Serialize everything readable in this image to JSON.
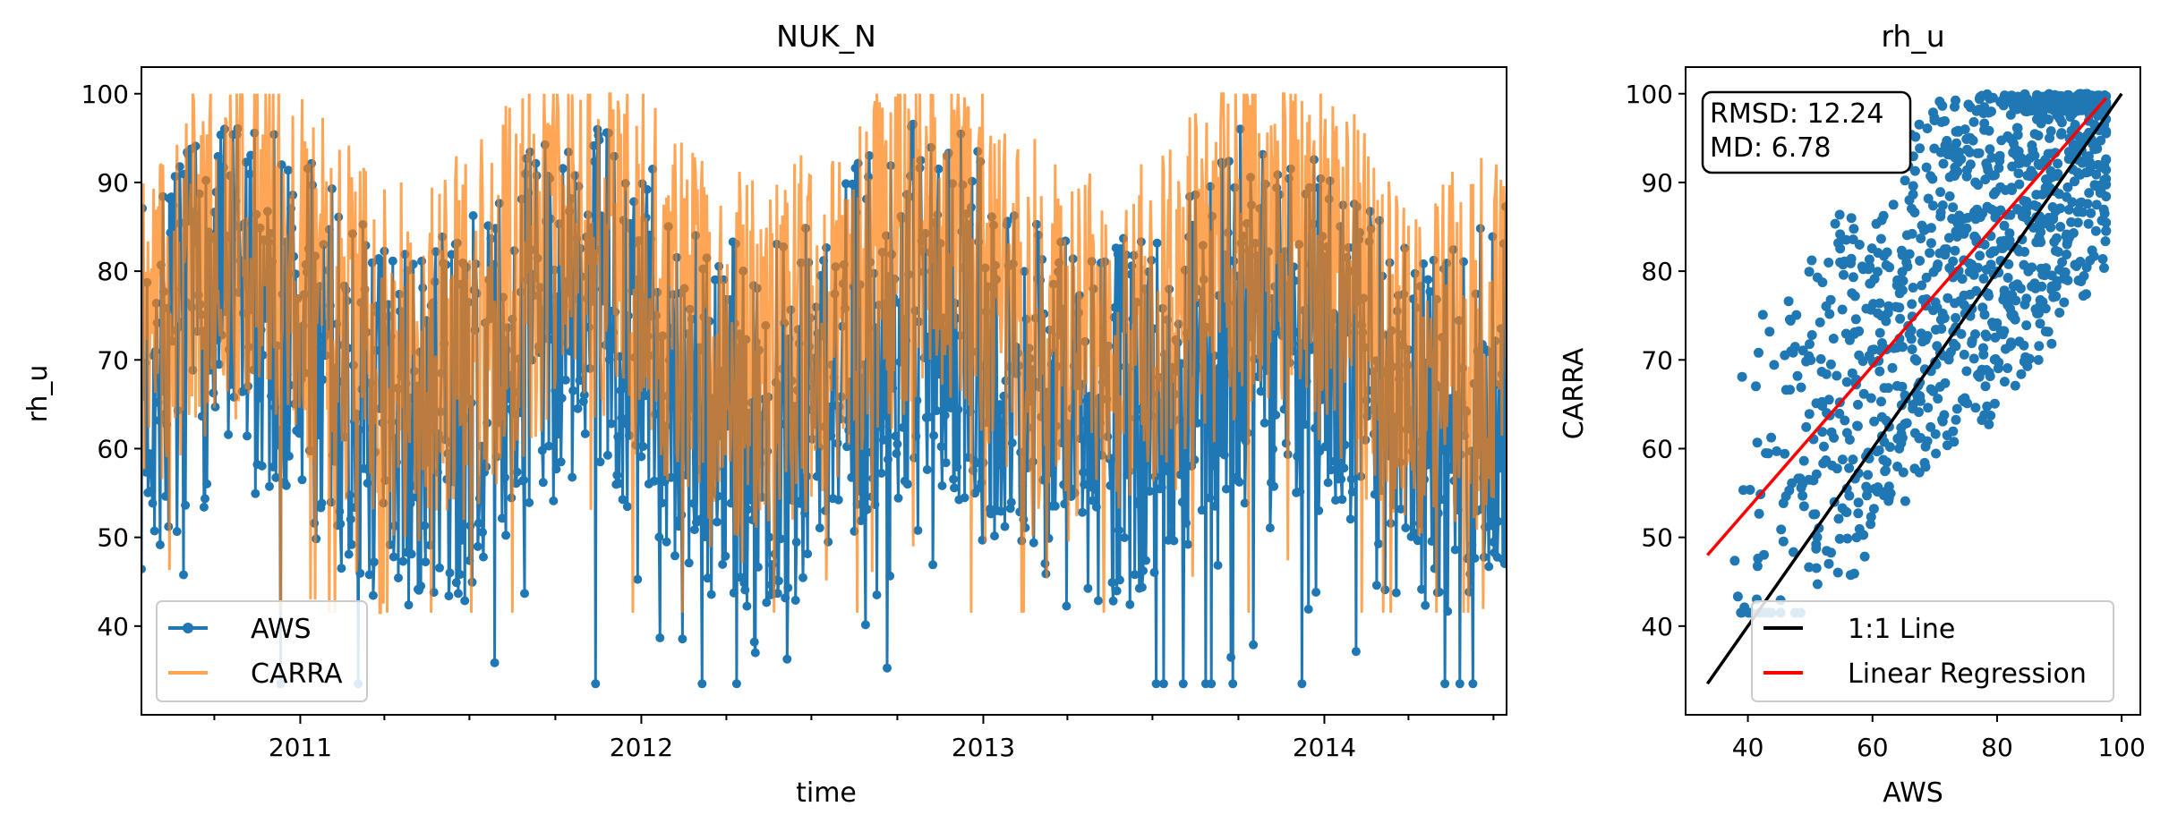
{
  "colors": {
    "aws": "#1f77b4",
    "carra": "#ff7f0e",
    "one_to_one": "#000000",
    "regression": "#ff0000"
  },
  "chart_data": [
    {
      "type": "line",
      "title": "NUK_N",
      "xlabel": "time",
      "ylabel": "rh_u",
      "x_ticks": [
        "2011",
        "2012",
        "2013",
        "2014"
      ],
      "y_ticks": [
        40,
        50,
        60,
        70,
        80,
        90,
        100
      ],
      "xlim": [
        "2010-07-15",
        "2014-07-15"
      ],
      "ylim": [
        30,
        103
      ],
      "grid": false,
      "legend": {
        "position": "lower-left",
        "entries": [
          "AWS",
          "CARRA"
        ]
      },
      "series": [
        {
          "name": "AWS",
          "marker": "circle",
          "color": "#1f77b4",
          "range": [
            33.5,
            97.5
          ],
          "seed": 7
        },
        {
          "name": "CARRA",
          "marker": "none",
          "color": "#ff7f0e",
          "alpha": 0.7,
          "range": [
            41.5,
            100
          ],
          "seed": 11
        }
      ]
    },
    {
      "type": "scatter",
      "title": "rh_u",
      "xlabel": "AWS",
      "ylabel": "CARRA",
      "x_ticks": [
        40,
        60,
        80,
        100
      ],
      "y_ticks": [
        40,
        50,
        60,
        70,
        80,
        90,
        100
      ],
      "xlim": [
        30,
        103
      ],
      "ylim": [
        30,
        103
      ],
      "annotation": [
        "RMSD: 12.24",
        "MD: 6.78"
      ],
      "legend": {
        "position": "lower-right",
        "entries": [
          "1:1 Line",
          "Linear Regression"
        ]
      },
      "one_to_one_line": {
        "x": [
          33.5,
          100
        ],
        "y": [
          33.5,
          100
        ]
      },
      "linear_regression": {
        "x": [
          33.5,
          97.5
        ],
        "y": [
          48.0,
          99.5
        ]
      },
      "point_count": 1100,
      "seed": 19
    }
  ]
}
